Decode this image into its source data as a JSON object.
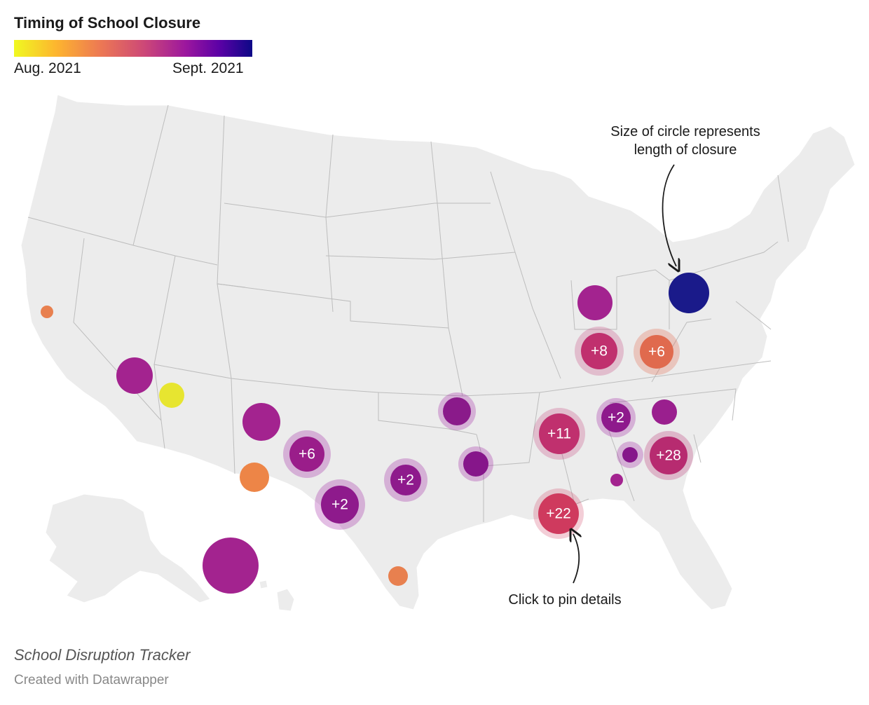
{
  "legend": {
    "title": "Timing of School Closure",
    "low_label": "Aug. 2021",
    "high_label": "Sept. 2021",
    "colors": [
      "#f0f921",
      "#fdb42f",
      "#ed7953",
      "#cc4778",
      "#9c179e",
      "#5c01a6",
      "#0d0887"
    ]
  },
  "annotations": {
    "size_line1": "Size of circle represents",
    "size_line2": "length of closure",
    "pin": "Click to pin details"
  },
  "bubbles": [
    {
      "label": "+8",
      "color": "#c0306e"
    },
    {
      "label": "+6",
      "color": "#e06a4e"
    },
    {
      "label": "+2",
      "color": "#8e1a8c"
    },
    {
      "label": "+11",
      "color": "#c0306e"
    },
    {
      "label": "+28",
      "color": "#b72b70"
    },
    {
      "label": "+22",
      "color": "#cf3a5e"
    },
    {
      "label": "+6",
      "color": "#9a1d8a"
    },
    {
      "label": "+2",
      "color": "#8e1a8c"
    },
    {
      "label": "+2",
      "color": "#8e1a8c"
    }
  ],
  "footer": {
    "source": "School Disruption Tracker",
    "credit": "Created with Datawrapper"
  }
}
